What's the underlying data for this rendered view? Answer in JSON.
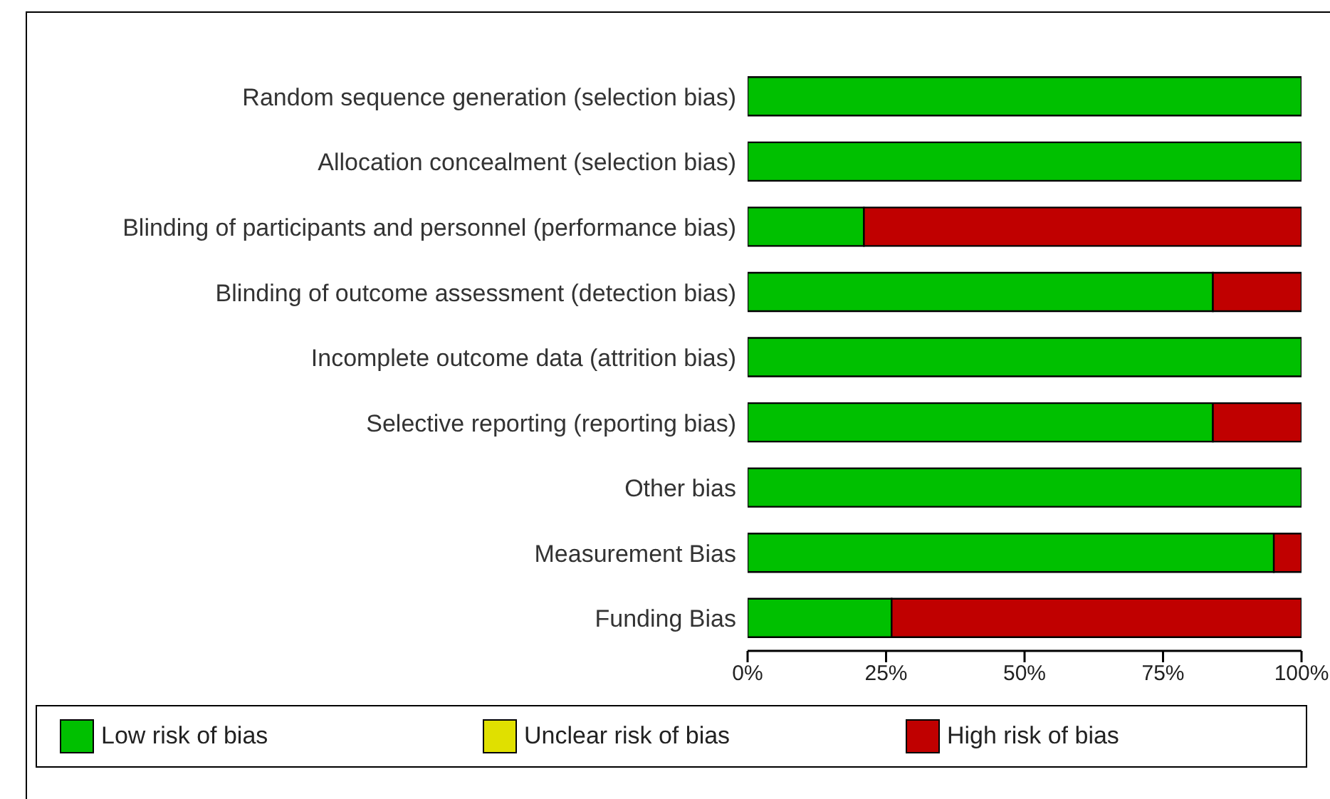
{
  "chart_data": {
    "type": "bar",
    "orientation": "horizontal",
    "stacked": true,
    "categories": [
      "Random sequence generation (selection bias)",
      "Allocation concealment (selection bias)",
      "Blinding of participants and personnel (performance bias)",
      "Blinding of outcome assessment (detection bias)",
      "Incomplete outcome data (attrition bias)",
      "Selective reporting (reporting bias)",
      "Other bias",
      "Measurement Bias",
      "Funding Bias"
    ],
    "series": [
      {
        "name": "Low risk of bias",
        "color": "#00c000",
        "values": [
          100,
          100,
          21,
          84,
          100,
          84,
          100,
          95,
          26
        ]
      },
      {
        "name": "Unclear risk of bias",
        "color": "#e0e000",
        "values": [
          0,
          0,
          0,
          0,
          0,
          0,
          0,
          0,
          0
        ]
      },
      {
        "name": "High risk of bias",
        "color": "#c00000",
        "values": [
          0,
          0,
          79,
          16,
          0,
          16,
          0,
          5,
          74
        ]
      }
    ],
    "xlim": [
      0,
      100
    ],
    "xticks": [
      {
        "value": 0,
        "label": "0%"
      },
      {
        "value": 25,
        "label": "25%"
      },
      {
        "value": 50,
        "label": "50%"
      },
      {
        "value": 75,
        "label": "75%"
      },
      {
        "value": 100,
        "label": "100%"
      }
    ],
    "grid": false,
    "legend": "bottom"
  }
}
